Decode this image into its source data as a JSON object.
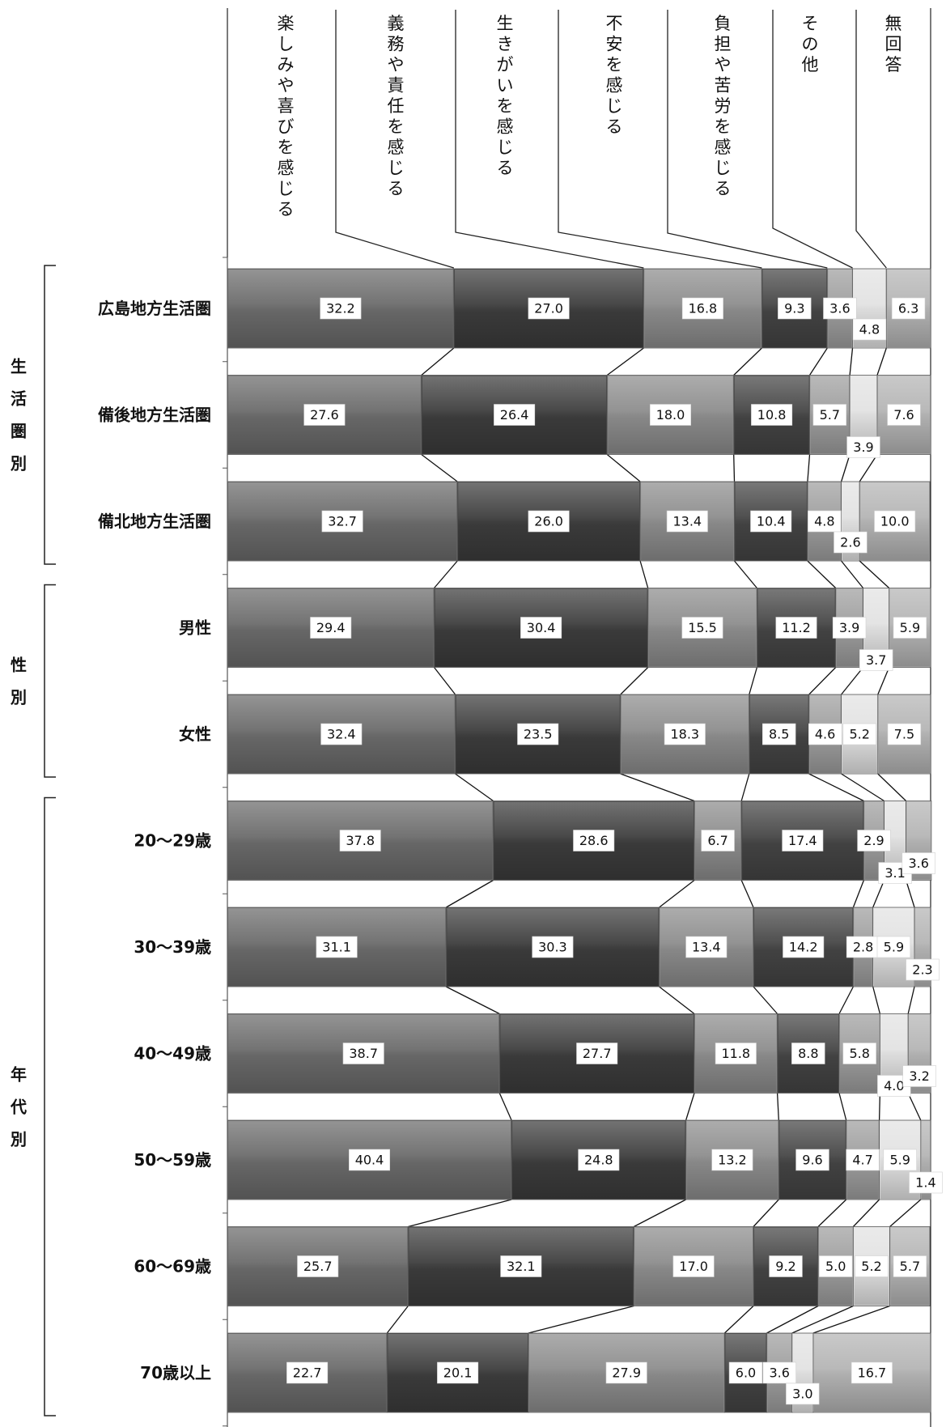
{
  "chart_data": {
    "type": "bar",
    "stacked": true,
    "orientation": "horizontal",
    "percent_total": 100,
    "series": [
      {
        "name": "楽しみや喜びを感じる",
        "color": "#6a6a6a",
        "values": [
          32.2,
          27.6,
          32.7,
          29.4,
          32.4,
          37.8,
          31.1,
          38.7,
          40.4,
          25.7,
          22.7
        ]
      },
      {
        "name": "義務や責任を感じる",
        "color": "#3c3c3c",
        "values": [
          27.0,
          26.4,
          26.0,
          30.4,
          23.5,
          28.6,
          30.3,
          27.7,
          24.8,
          32.1,
          20.1
        ]
      },
      {
        "name": "生きがいを感じる",
        "color": "#8c8c8c",
        "values": [
          16.8,
          18.0,
          13.4,
          15.5,
          18.3,
          6.7,
          13.4,
          11.8,
          13.2,
          17.0,
          27.9
        ]
      },
      {
        "name": "不安を感じる",
        "color": "#444444",
        "values": [
          9.3,
          10.8,
          10.4,
          11.2,
          8.5,
          17.4,
          14.2,
          8.8,
          9.6,
          9.2,
          6.0
        ]
      },
      {
        "name": "負担や苦労を感じる",
        "color": "#9e9e9e",
        "values": [
          3.6,
          5.7,
          4.8,
          3.9,
          4.6,
          2.9,
          2.8,
          5.8,
          4.7,
          5.0,
          3.6
        ]
      },
      {
        "name": "その他",
        "color": "#e2e2e2",
        "values": [
          4.8,
          3.9,
          2.6,
          3.7,
          5.2,
          3.1,
          5.9,
          4.0,
          5.9,
          5.2,
          3.0
        ]
      },
      {
        "name": "無回答",
        "color": "#b4b4b4",
        "values": [
          6.3,
          7.6,
          10.0,
          5.9,
          7.5,
          3.6,
          2.3,
          3.2,
          1.4,
          5.7,
          16.7
        ]
      }
    ],
    "column_header_lines": [
      [
        "楽",
        "し",
        "み",
        "や",
        "喜",
        "び",
        "を",
        "感",
        "じ",
        "る"
      ],
      [
        "義",
        "務",
        "や",
        "責",
        "任",
        "を",
        "感",
        "じ",
        "る"
      ],
      [
        "生",
        "き",
        "が",
        "い",
        "を",
        "感",
        "じ",
        "る"
      ],
      [
        "不",
        "安",
        "を",
        "感",
        "じ",
        "る"
      ],
      [
        "負",
        "担",
        "や",
        "苦",
        "労",
        "を",
        "感",
        "じ",
        "る"
      ],
      [
        "そ",
        "の",
        "他"
      ],
      [
        "無",
        "回",
        "答"
      ]
    ],
    "categories": [
      "広島地方生活圏",
      "備後地方生活圏",
      "備北地方生活圏",
      "男性",
      "女性",
      "20〜29歳",
      "30〜39歳",
      "40〜49歳",
      "50〜59歳",
      "60〜69歳",
      "70歳以上"
    ],
    "groups": [
      {
        "chars": [
          "生",
          "活",
          "圏",
          "別"
        ],
        "rows": [
          0,
          2
        ]
      },
      {
        "chars": [
          "性",
          "別"
        ],
        "rows": [
          3,
          4
        ]
      },
      {
        "chars": [
          "年",
          "代",
          "別"
        ],
        "rows": [
          5,
          10
        ]
      }
    ],
    "data_labels": [
      [
        "32.2",
        "27.0",
        "16.8",
        "9.3",
        "3.6",
        "4.8",
        "6.3"
      ],
      [
        "27.6",
        "26.4",
        "18.0",
        "10.8",
        "5.7",
        "3.9",
        "7.6"
      ],
      [
        "32.7",
        "26.0",
        "13.4",
        "10.4",
        "4.8",
        "2.6",
        "10.0"
      ],
      [
        "29.4",
        "30.4",
        "15.5",
        "11.2",
        "3.9",
        "3.7",
        "5.9"
      ],
      [
        "32.4",
        "23.5",
        "18.3",
        "8.5",
        "4.6",
        "5.2",
        "7.5"
      ],
      [
        "37.8",
        "28.6",
        "6.7",
        "17.4",
        "2.9",
        "3.1",
        "3.6"
      ],
      [
        "31.1",
        "30.3",
        "13.4",
        "14.2",
        "2.8",
        "5.9",
        "2.3"
      ],
      [
        "38.7",
        "27.7",
        "11.8",
        "8.8",
        "5.8",
        "4.0",
        "3.2"
      ],
      [
        "40.4",
        "24.8",
        "13.2",
        "9.6",
        "4.7",
        "5.9",
        "1.4"
      ],
      [
        "25.7",
        "32.1",
        "17.0",
        "9.2",
        "5.0",
        "5.2",
        "5.7"
      ],
      [
        "22.7",
        "20.1",
        "27.9",
        "6.0",
        "3.6",
        "3.0",
        "16.7"
      ]
    ],
    "title": "",
    "xlabel": "",
    "ylabel": "",
    "xlim": [
      0,
      100
    ],
    "grid": false,
    "legend": "top"
  }
}
